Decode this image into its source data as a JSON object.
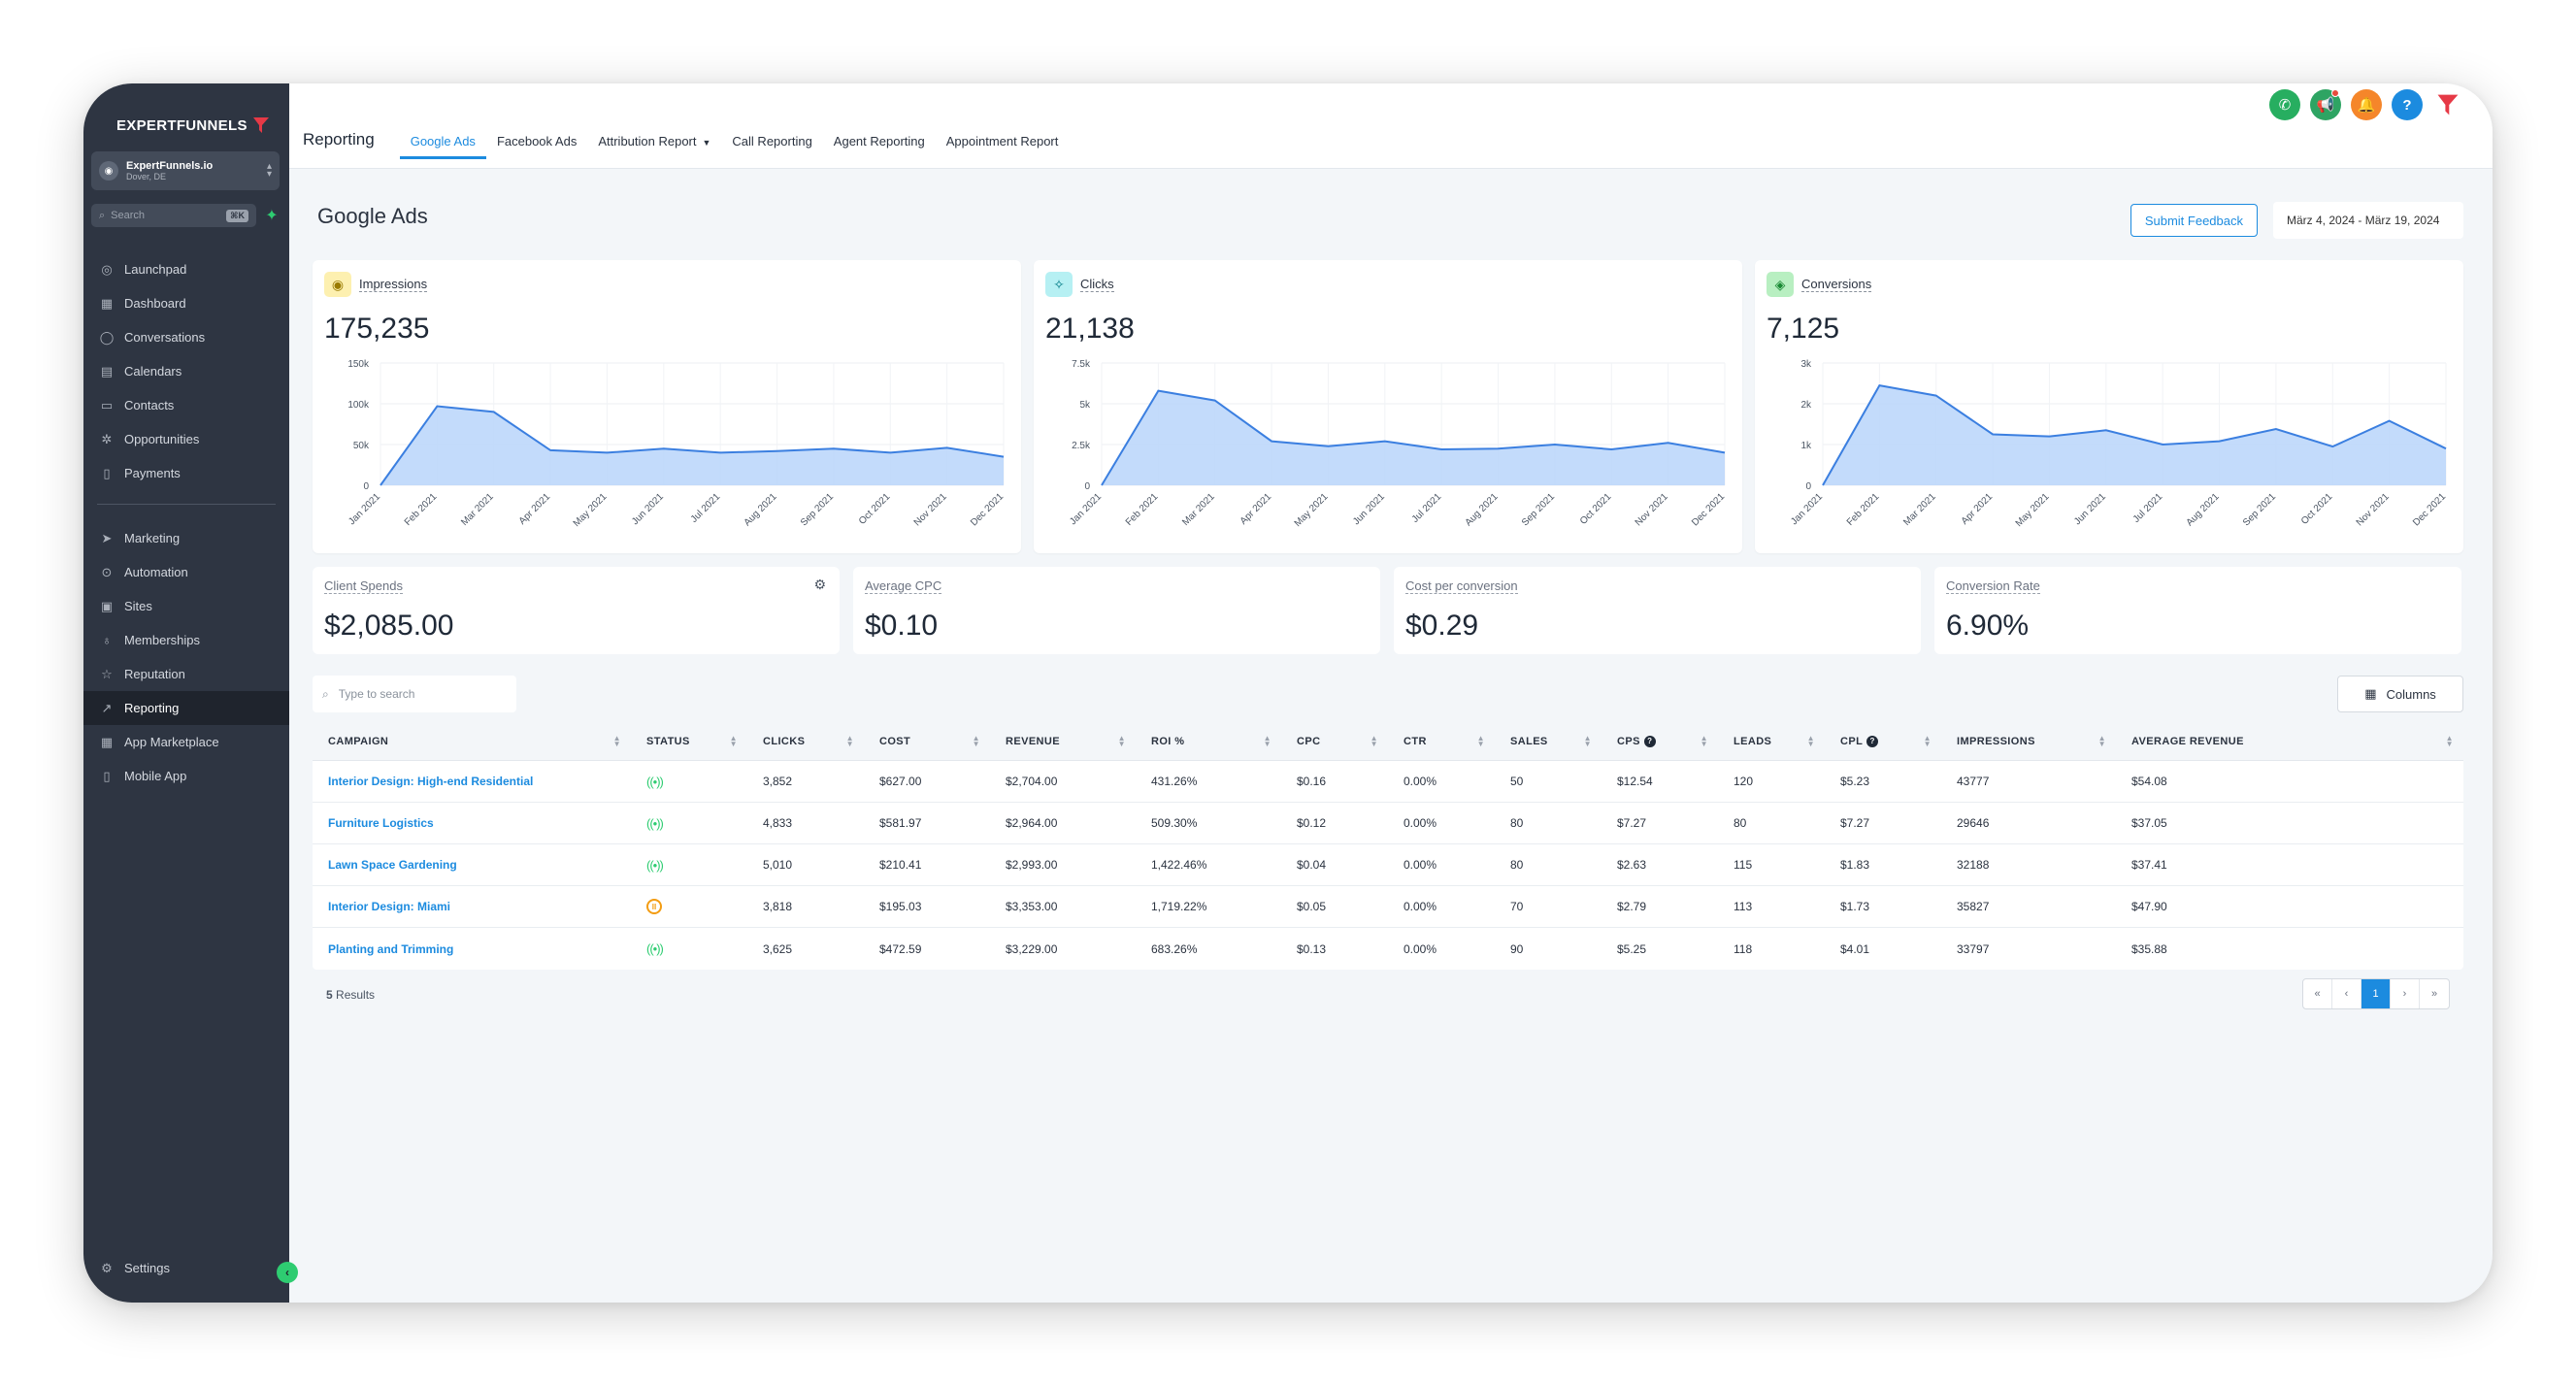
{
  "app": {
    "logo_text": "EXPERTFUNNELS",
    "account_name": "ExpertFunnels.io",
    "account_location": "Dover, DE",
    "search_placeholder": "Search",
    "search_shortcut": "⌘K"
  },
  "sidebar": {
    "items": [
      {
        "label": "Launchpad",
        "icon": "rocket-icon"
      },
      {
        "label": "Dashboard",
        "icon": "grid-icon"
      },
      {
        "label": "Conversations",
        "icon": "chat-icon"
      },
      {
        "label": "Calendars",
        "icon": "calendar-icon"
      },
      {
        "label": "Contacts",
        "icon": "contact-card-icon"
      },
      {
        "label": "Opportunities",
        "icon": "funnel-icon"
      },
      {
        "label": "Payments",
        "icon": "receipt-icon"
      }
    ],
    "items2": [
      {
        "label": "Marketing",
        "icon": "paper-plane-icon"
      },
      {
        "label": "Automation",
        "icon": "automation-icon"
      },
      {
        "label": "Sites",
        "icon": "sites-icon"
      },
      {
        "label": "Memberships",
        "icon": "award-icon"
      },
      {
        "label": "Reputation",
        "icon": "star-icon"
      },
      {
        "label": "Reporting",
        "icon": "trend-icon",
        "active": true
      },
      {
        "label": "App Marketplace",
        "icon": "apps-icon"
      },
      {
        "label": "Mobile App",
        "icon": "phone-icon"
      }
    ],
    "settings_label": "Settings"
  },
  "header": {
    "section": "Reporting",
    "tabs": [
      "Google Ads",
      "Facebook Ads",
      "Attribution Report",
      "Call Reporting",
      "Agent Reporting",
      "Appointment Report"
    ],
    "active_tab": "Google Ads"
  },
  "page": {
    "title": "Google Ads",
    "feedback_label": "Submit Feedback",
    "date_range": "März 4, 2024 - März 19, 2024"
  },
  "kpis": {
    "impressions": {
      "label": "Impressions",
      "value": "175,235"
    },
    "clicks": {
      "label": "Clicks",
      "value": "21,138"
    },
    "conversions": {
      "label": "Conversions",
      "value": "7,125"
    }
  },
  "stats": [
    {
      "label": "Client Spends",
      "value": "$2,085.00"
    },
    {
      "label": "Average CPC",
      "value": "$0.10"
    },
    {
      "label": "Cost per conversion",
      "value": "$0.29"
    },
    {
      "label": "Conversion Rate",
      "value": "6.90%"
    }
  ],
  "colors": {
    "accent": "#1c8bdf",
    "chart_fill": "#bcd7fb",
    "chart_line": "#3b7fe0",
    "live": "#2ecc71",
    "paused": "#f39c12"
  },
  "chart_data": [
    {
      "type": "area",
      "title": "Impressions",
      "categories": [
        "Jan 2021",
        "Feb 2021",
        "Mar 2021",
        "Apr 2021",
        "May 2021",
        "Jun 2021",
        "Jul 2021",
        "Aug 2021",
        "Sep 2021",
        "Oct 2021",
        "Nov 2021",
        "Dec 2021"
      ],
      "values": [
        0,
        97000,
        90000,
        43000,
        40000,
        45000,
        40000,
        42000,
        45000,
        40000,
        46000,
        35000
      ],
      "y_ticks": [
        "150k",
        "100k",
        "50k",
        "0"
      ],
      "ylim": [
        0,
        150000
      ]
    },
    {
      "type": "area",
      "title": "Clicks",
      "categories": [
        "Jan 2021",
        "Feb 2021",
        "Mar 2021",
        "Apr 2021",
        "May 2021",
        "Jun 2021",
        "Jul 2021",
        "Aug 2021",
        "Sep 2021",
        "Oct 2021",
        "Nov 2021",
        "Dec 2021"
      ],
      "values": [
        0,
        5800,
        5200,
        2700,
        2400,
        2700,
        2200,
        2250,
        2500,
        2200,
        2600,
        2000
      ],
      "y_ticks": [
        "7.5k",
        "5k",
        "2.5k",
        "0"
      ],
      "ylim": [
        0,
        7500
      ]
    },
    {
      "type": "area",
      "title": "Conversions",
      "categories": [
        "Jan 2021",
        "Feb 2021",
        "Mar 2021",
        "Apr 2021",
        "May 2021",
        "Jun 2021",
        "Jul 2021",
        "Aug 2021",
        "Sep 2021",
        "Oct 2021",
        "Nov 2021",
        "Dec 2021"
      ],
      "values": [
        0,
        2450,
        2200,
        1250,
        1200,
        1350,
        1000,
        1080,
        1380,
        950,
        1580,
        900
      ],
      "y_ticks": [
        "3k",
        "2k",
        "1k",
        "0"
      ],
      "ylim": [
        0,
        3000
      ]
    }
  ],
  "table": {
    "search_placeholder": "Type to search",
    "columns_label": "Columns",
    "headers": [
      "CAMPAIGN",
      "STATUS",
      "CLICKS",
      "COST",
      "REVENUE",
      "ROI %",
      "CPC",
      "CTR",
      "SALES",
      "CPS",
      "LEADS",
      "CPL",
      "IMPRESSIONS",
      "AVERAGE REVENUE"
    ],
    "rows": [
      {
        "campaign": "Interior Design: High-end Residential",
        "status": "live",
        "clicks": "3,852",
        "cost": "$627.00",
        "revenue": "$2,704.00",
        "roi": "431.26%",
        "cpc": "$0.16",
        "ctr": "0.00%",
        "sales": "50",
        "cps": "$12.54",
        "leads": "120",
        "cpl": "$5.23",
        "impressions": "43777",
        "avg_revenue": "$54.08"
      },
      {
        "campaign": "Furniture Logistics",
        "status": "live",
        "clicks": "4,833",
        "cost": "$581.97",
        "revenue": "$2,964.00",
        "roi": "509.30%",
        "cpc": "$0.12",
        "ctr": "0.00%",
        "sales": "80",
        "cps": "$7.27",
        "leads": "80",
        "cpl": "$7.27",
        "impressions": "29646",
        "avg_revenue": "$37.05"
      },
      {
        "campaign": "Lawn Space Gardening",
        "status": "live",
        "clicks": "5,010",
        "cost": "$210.41",
        "revenue": "$2,993.00",
        "roi": "1,422.46%",
        "cpc": "$0.04",
        "ctr": "0.00%",
        "sales": "80",
        "cps": "$2.63",
        "leads": "115",
        "cpl": "$1.83",
        "impressions": "32188",
        "avg_revenue": "$37.41"
      },
      {
        "campaign": "Interior Design: Miami",
        "status": "paused",
        "clicks": "3,818",
        "cost": "$195.03",
        "revenue": "$3,353.00",
        "roi": "1,719.22%",
        "cpc": "$0.05",
        "ctr": "0.00%",
        "sales": "70",
        "cps": "$2.79",
        "leads": "113",
        "cpl": "$1.73",
        "impressions": "35827",
        "avg_revenue": "$47.90"
      },
      {
        "campaign": "Planting and Trimming",
        "status": "live",
        "clicks": "3,625",
        "cost": "$472.59",
        "revenue": "$3,229.00",
        "roi": "683.26%",
        "cpc": "$0.13",
        "ctr": "0.00%",
        "sales": "90",
        "cps": "$5.25",
        "leads": "118",
        "cpl": "$4.01",
        "impressions": "33797",
        "avg_revenue": "$35.88"
      }
    ],
    "results_count": "5",
    "results_label": "Results",
    "pager": {
      "first": "«",
      "prev": "‹",
      "current": "1",
      "next": "›",
      "last": "»"
    }
  }
}
